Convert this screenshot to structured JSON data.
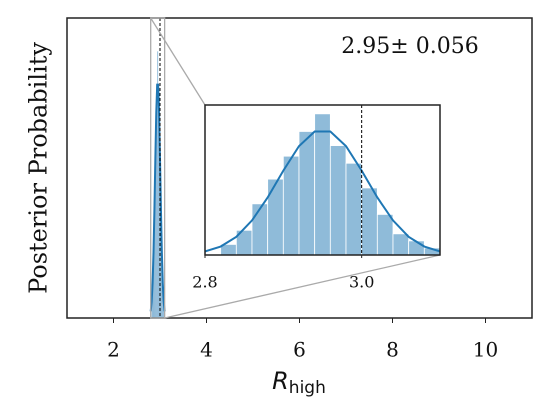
{
  "chart_data": {
    "type": "histogram",
    "ylabel": "Posterior Probability",
    "xlabel": {
      "main": "R",
      "subscript": "high"
    },
    "annotation": "2.95± 0.056",
    "color": "#1f77b4",
    "bins": [
      2.82,
      2.84,
      2.86,
      2.88,
      2.9,
      2.92,
      2.94,
      2.96,
      2.98,
      3.0,
      3.02,
      3.04,
      3.06,
      3.08,
      3.1
    ],
    "counts": [
      0.6,
      1.4,
      2.9,
      4.3,
      5.6,
      7.0,
      8.0,
      6.2,
      5.2,
      3.8,
      2.3,
      1.2,
      0.8,
      0.4
    ],
    "kde": {
      "x": [
        2.8,
        2.82,
        2.84,
        2.86,
        2.88,
        2.9,
        2.92,
        2.94,
        2.96,
        2.98,
        3.0,
        3.02,
        3.04,
        3.06,
        3.08,
        3.1
      ],
      "values": [
        0.2,
        0.48,
        1.03,
        1.96,
        3.26,
        4.78,
        6.17,
        7.0,
        7.0,
        6.17,
        4.78,
        3.26,
        1.96,
        1.03,
        0.48,
        0.2
      ]
    },
    "vline": 3.0,
    "xlim": [
      1,
      11
    ],
    "xticks": [
      2,
      4,
      6,
      8,
      10
    ],
    "ylim": [
      0,
      9
    ],
    "inset": {
      "xlim": [
        2.8,
        3.1
      ],
      "xticks": [
        2.8,
        {
          "value": 3.0,
          "label": "3.0"
        }
      ],
      "ylim": [
        0,
        8.5
      ]
    }
  }
}
